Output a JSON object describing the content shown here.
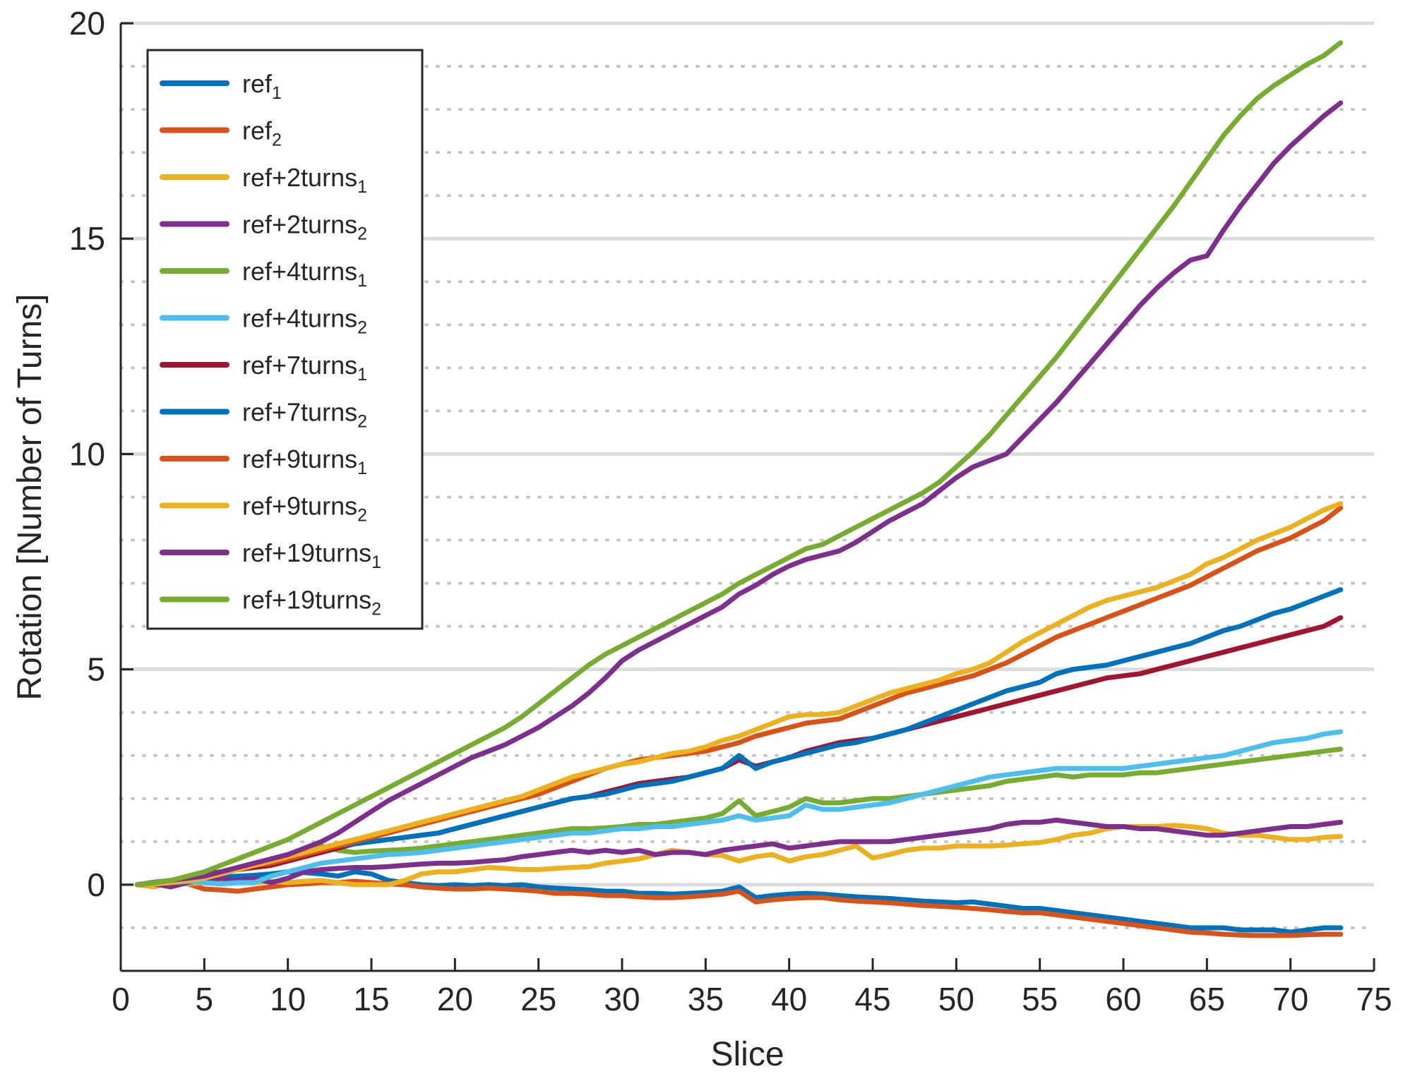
{
  "chart_data": {
    "type": "line",
    "title": "",
    "xlabel": "Slice",
    "ylabel": "Rotation [Number of Turns]",
    "xlim": [
      0,
      75
    ],
    "ylim": [
      -2,
      20
    ],
    "xticks": [
      0,
      5,
      10,
      15,
      20,
      25,
      30,
      35,
      40,
      45,
      50,
      55,
      60,
      65,
      70,
      75
    ],
    "yticks": [
      0,
      5,
      10,
      15,
      20
    ],
    "major_grid_y": [
      -1,
      0,
      1,
      2,
      3,
      4,
      5,
      6,
      7,
      8,
      9,
      10,
      11,
      12,
      13,
      14,
      15,
      16,
      17,
      18,
      19,
      20
    ],
    "legend_position": "top-left",
    "series": [
      {
        "name": "ref",
        "subscript": "1",
        "color": "#0072BD",
        "x_start": 1,
        "values": [
          0,
          0.06,
          0.1,
          0.15,
          0.12,
          0.18,
          0.2,
          0.22,
          0.25,
          0.3,
          0.28,
          0.25,
          0.2,
          0.3,
          0.25,
          0.1,
          0.05,
          0,
          -0.02,
          0,
          -0.02,
          0,
          -0.02,
          0,
          -0.05,
          -0.08,
          -0.1,
          -0.12,
          -0.15,
          -0.15,
          -0.2,
          -0.2,
          -0.22,
          -0.2,
          -0.18,
          -0.15,
          -0.05,
          -0.3,
          -0.25,
          -0.22,
          -0.2,
          -0.22,
          -0.25,
          -0.28,
          -0.3,
          -0.32,
          -0.35,
          -0.38,
          -0.4,
          -0.42,
          -0.4,
          -0.45,
          -0.5,
          -0.55,
          -0.55,
          -0.6,
          -0.65,
          -0.7,
          -0.75,
          -0.8,
          -0.85,
          -0.9,
          -0.95,
          -1,
          -1,
          -1,
          -1.05,
          -1.05,
          -1.05,
          -1.1,
          -1.05,
          -1,
          -1
        ]
      },
      {
        "name": "ref",
        "subscript": "2",
        "color": "#D95319",
        "x_start": 1,
        "values": [
          0,
          0.05,
          0.05,
          0.02,
          -0.1,
          -0.12,
          -0.15,
          -0.1,
          -0.05,
          0,
          0.02,
          0.05,
          0.05,
          0.08,
          0.05,
          0.02,
          0,
          -0.05,
          -0.08,
          -0.1,
          -0.1,
          -0.08,
          -0.1,
          -0.12,
          -0.15,
          -0.2,
          -0.2,
          -0.22,
          -0.25,
          -0.25,
          -0.28,
          -0.3,
          -0.3,
          -0.28,
          -0.25,
          -0.22,
          -0.15,
          -0.4,
          -0.35,
          -0.32,
          -0.3,
          -0.3,
          -0.35,
          -0.38,
          -0.4,
          -0.42,
          -0.45,
          -0.48,
          -0.5,
          -0.52,
          -0.55,
          -0.58,
          -0.62,
          -0.65,
          -0.65,
          -0.7,
          -0.75,
          -0.8,
          -0.85,
          -0.9,
          -0.95,
          -1,
          -1.05,
          -1.1,
          -1.12,
          -1.15,
          -1.17,
          -1.18,
          -1.18,
          -1.18,
          -1.16,
          -1.15,
          -1.15
        ]
      },
      {
        "name": "ref+2turns",
        "subscript": "1",
        "color": "#EDB120",
        "x_start": 1,
        "values": [
          0,
          -0.05,
          0.05,
          0.02,
          0.05,
          0.08,
          0.08,
          0.05,
          0.08,
          0.05,
          0.08,
          0.1,
          0.05,
          0,
          0,
          0,
          0.1,
          0.25,
          0.3,
          0.3,
          0.35,
          0.4,
          0.38,
          0.35,
          0.35,
          0.38,
          0.4,
          0.42,
          0.5,
          0.55,
          0.6,
          0.7,
          0.8,
          0.75,
          0.7,
          0.68,
          0.55,
          0.65,
          0.7,
          0.55,
          0.65,
          0.7,
          0.8,
          0.9,
          0.62,
          0.7,
          0.8,
          0.85,
          0.85,
          0.9,
          0.9,
          0.9,
          0.92,
          0.95,
          0.98,
          1.05,
          1.15,
          1.2,
          1.3,
          1.35,
          1.35,
          1.35,
          1.38,
          1.35,
          1.3,
          1.2,
          1.15,
          1.15,
          1.1,
          1.05,
          1.05,
          1.1,
          1.12
        ]
      },
      {
        "name": "ref+2turns",
        "subscript": "2",
        "color": "#7E2F8E",
        "x_start": 1,
        "values": [
          0,
          0.02,
          -0.05,
          0.05,
          0.1,
          0.15,
          0.1,
          0.15,
          0.05,
          0.15,
          0.3,
          0.35,
          0.38,
          0.4,
          0.4,
          0.42,
          0.45,
          0.48,
          0.5,
          0.5,
          0.52,
          0.55,
          0.58,
          0.65,
          0.7,
          0.75,
          0.8,
          0.75,
          0.8,
          0.75,
          0.8,
          0.7,
          0.75,
          0.75,
          0.7,
          0.8,
          0.85,
          0.9,
          0.95,
          0.85,
          0.9,
          0.95,
          1,
          1,
          1,
          1,
          1.05,
          1.1,
          1.15,
          1.2,
          1.25,
          1.3,
          1.4,
          1.45,
          1.45,
          1.5,
          1.45,
          1.4,
          1.35,
          1.35,
          1.3,
          1.3,
          1.25,
          1.2,
          1.15,
          1.15,
          1.2,
          1.25,
          1.3,
          1.35,
          1.35,
          1.4,
          1.45
        ]
      },
      {
        "name": "ref+4turns",
        "subscript": "1",
        "color": "#77AC30",
        "x_start": 1,
        "values": [
          0,
          0.05,
          0.1,
          0.15,
          0.2,
          0.3,
          0.4,
          0.5,
          0.6,
          0.7,
          0.8,
          0.9,
          0.8,
          0.75,
          0.78,
          0.8,
          0.82,
          0.85,
          0.9,
          0.95,
          1,
          1.05,
          1.1,
          1.15,
          1.2,
          1.25,
          1.3,
          1.3,
          1.32,
          1.35,
          1.4,
          1.4,
          1.45,
          1.5,
          1.55,
          1.65,
          1.95,
          1.6,
          1.7,
          1.8,
          2,
          1.9,
          1.9,
          1.95,
          2,
          2,
          2.05,
          2.1,
          2.15,
          2.2,
          2.25,
          2.3,
          2.4,
          2.45,
          2.5,
          2.55,
          2.5,
          2.55,
          2.55,
          2.55,
          2.6,
          2.6,
          2.65,
          2.7,
          2.75,
          2.8,
          2.85,
          2.9,
          2.95,
          3,
          3.05,
          3.1,
          3.15
        ]
      },
      {
        "name": "ref+4turns",
        "subscript": "2",
        "color": "#4DBEEE",
        "x_start": 1,
        "values": [
          0,
          0.02,
          0.05,
          0.08,
          0.05,
          0.02,
          0.05,
          0.05,
          0.2,
          0.3,
          0.4,
          0.5,
          0.55,
          0.6,
          0.65,
          0.7,
          0.72,
          0.75,
          0.8,
          0.85,
          0.9,
          0.95,
          1,
          1.05,
          1.1,
          1.15,
          1.2,
          1.2,
          1.25,
          1.3,
          1.3,
          1.35,
          1.35,
          1.4,
          1.45,
          1.5,
          1.6,
          1.5,
          1.55,
          1.6,
          1.85,
          1.75,
          1.75,
          1.8,
          1.85,
          1.9,
          2,
          2.1,
          2.2,
          2.3,
          2.4,
          2.5,
          2.55,
          2.6,
          2.65,
          2.7,
          2.7,
          2.7,
          2.7,
          2.7,
          2.75,
          2.8,
          2.85,
          2.9,
          2.95,
          3,
          3.1,
          3.2,
          3.3,
          3.35,
          3.4,
          3.5,
          3.55
        ]
      },
      {
        "name": "ref+7turns",
        "subscript": "1",
        "color": "#A2142F",
        "x_start": 1,
        "values": [
          0,
          0.05,
          0.1,
          0.15,
          0.25,
          0.3,
          0.35,
          0.4,
          0.45,
          0.55,
          0.65,
          0.75,
          0.85,
          0.95,
          1,
          1.05,
          1.1,
          1.15,
          1.2,
          1.3,
          1.4,
          1.5,
          1.6,
          1.7,
          1.8,
          1.9,
          2,
          2.05,
          2.15,
          2.25,
          2.35,
          2.4,
          2.45,
          2.5,
          2.6,
          2.7,
          2.9,
          2.75,
          2.85,
          2.95,
          3.1,
          3.2,
          3.3,
          3.35,
          3.4,
          3.5,
          3.6,
          3.7,
          3.8,
          3.9,
          4,
          4.1,
          4.2,
          4.3,
          4.4,
          4.5,
          4.6,
          4.7,
          4.8,
          4.85,
          4.9,
          5,
          5.1,
          5.2,
          5.3,
          5.4,
          5.5,
          5.6,
          5.7,
          5.8,
          5.9,
          6,
          6.2
        ]
      },
      {
        "name": "ref+7turns",
        "subscript": "2",
        "color": "#0072BD",
        "x_start": 1,
        "values": [
          0,
          0.05,
          0.1,
          0.15,
          0.2,
          0.3,
          0.4,
          0.5,
          0.55,
          0.65,
          0.75,
          0.85,
          0.9,
          0.95,
          1,
          1.05,
          1.1,
          1.15,
          1.2,
          1.3,
          1.4,
          1.5,
          1.6,
          1.7,
          1.8,
          1.9,
          2,
          2.05,
          2.1,
          2.2,
          2.3,
          2.35,
          2.4,
          2.5,
          2.6,
          2.7,
          3,
          2.7,
          2.85,
          2.95,
          3.05,
          3.15,
          3.25,
          3.3,
          3.4,
          3.5,
          3.6,
          3.75,
          3.9,
          4.05,
          4.2,
          4.35,
          4.5,
          4.6,
          4.7,
          4.9,
          5,
          5.05,
          5.1,
          5.2,
          5.3,
          5.4,
          5.5,
          5.6,
          5.75,
          5.9,
          6,
          6.15,
          6.3,
          6.4,
          6.55,
          6.7,
          6.85
        ]
      },
      {
        "name": "ref+9turns",
        "subscript": "1",
        "color": "#D95319",
        "x_start": 1,
        "values": [
          0,
          0.05,
          0.1,
          0.15,
          0.2,
          0.3,
          0.4,
          0.45,
          0.5,
          0.6,
          0.7,
          0.8,
          0.9,
          1,
          1.1,
          1.2,
          1.3,
          1.4,
          1.5,
          1.6,
          1.7,
          1.8,
          1.9,
          2,
          2.1,
          2.25,
          2.4,
          2.55,
          2.7,
          2.8,
          2.9,
          2.95,
          3,
          3.05,
          3.1,
          3.2,
          3.3,
          3.45,
          3.55,
          3.65,
          3.75,
          3.8,
          3.85,
          4,
          4.15,
          4.3,
          4.45,
          4.55,
          4.65,
          4.75,
          4.85,
          5,
          5.15,
          5.35,
          5.55,
          5.75,
          5.9,
          6.05,
          6.2,
          6.35,
          6.5,
          6.65,
          6.8,
          6.95,
          7.15,
          7.35,
          7.55,
          7.75,
          7.9,
          8.05,
          8.25,
          8.45,
          8.75
        ]
      },
      {
        "name": "ref+9turns",
        "subscript": "2",
        "color": "#EDB120",
        "x_start": 1,
        "values": [
          0,
          0.02,
          0.05,
          0.1,
          0.15,
          0.25,
          0.35,
          0.45,
          0.55,
          0.65,
          0.75,
          0.85,
          0.95,
          1.05,
          1.15,
          1.25,
          1.35,
          1.45,
          1.55,
          1.65,
          1.75,
          1.85,
          1.95,
          2.05,
          2.2,
          2.35,
          2.5,
          2.6,
          2.7,
          2.8,
          2.85,
          2.95,
          3.05,
          3.1,
          3.2,
          3.35,
          3.45,
          3.6,
          3.75,
          3.9,
          3.95,
          3.95,
          4,
          4.15,
          4.3,
          4.45,
          4.55,
          4.65,
          4.75,
          4.9,
          5,
          5.15,
          5.4,
          5.65,
          5.85,
          6.05,
          6.25,
          6.45,
          6.6,
          6.7,
          6.8,
          6.9,
          7.05,
          7.2,
          7.45,
          7.6,
          7.8,
          8,
          8.15,
          8.3,
          8.5,
          8.7,
          8.85
        ]
      },
      {
        "name": "ref+19turns",
        "subscript": "1",
        "color": "#7E2F8E",
        "x_start": 1,
        "values": [
          0,
          0.05,
          0.1,
          0.15,
          0.2,
          0.3,
          0.4,
          0.5,
          0.6,
          0.7,
          0.85,
          1,
          1.2,
          1.45,
          1.7,
          1.95,
          2.15,
          2.35,
          2.55,
          2.75,
          2.95,
          3.1,
          3.25,
          3.45,
          3.65,
          3.9,
          4.15,
          4.45,
          4.8,
          5.2,
          5.45,
          5.65,
          5.85,
          6.05,
          6.25,
          6.45,
          6.75,
          6.95,
          7.2,
          7.4,
          7.55,
          7.65,
          7.75,
          7.95,
          8.2,
          8.45,
          8.65,
          8.85,
          9.15,
          9.45,
          9.7,
          9.85,
          10,
          10.4,
          10.8,
          11.2,
          11.65,
          12.1,
          12.55,
          13,
          13.45,
          13.85,
          14.2,
          14.5,
          14.6,
          15.2,
          15.75,
          16.25,
          16.75,
          17.15,
          17.5,
          17.85,
          18.15
        ]
      },
      {
        "name": "ref+19turns",
        "subscript": "2",
        "color": "#77AC30",
        "x_start": 1,
        "values": [
          0,
          0.05,
          0.1,
          0.2,
          0.3,
          0.45,
          0.6,
          0.75,
          0.9,
          1.05,
          1.25,
          1.45,
          1.65,
          1.85,
          2.05,
          2.25,
          2.45,
          2.65,
          2.85,
          3.05,
          3.25,
          3.45,
          3.65,
          3.9,
          4.2,
          4.5,
          4.8,
          5.1,
          5.35,
          5.55,
          5.75,
          5.95,
          6.15,
          6.35,
          6.55,
          6.75,
          7,
          7.2,
          7.4,
          7.6,
          7.8,
          7.9,
          8.1,
          8.3,
          8.5,
          8.7,
          8.9,
          9.1,
          9.35,
          9.7,
          10.05,
          10.45,
          10.9,
          11.35,
          11.8,
          12.25,
          12.75,
          13.25,
          13.75,
          14.25,
          14.75,
          15.25,
          15.75,
          16.3,
          16.85,
          17.4,
          17.85,
          18.25,
          18.55,
          18.8,
          19.05,
          19.25,
          19.55
        ]
      }
    ]
  }
}
